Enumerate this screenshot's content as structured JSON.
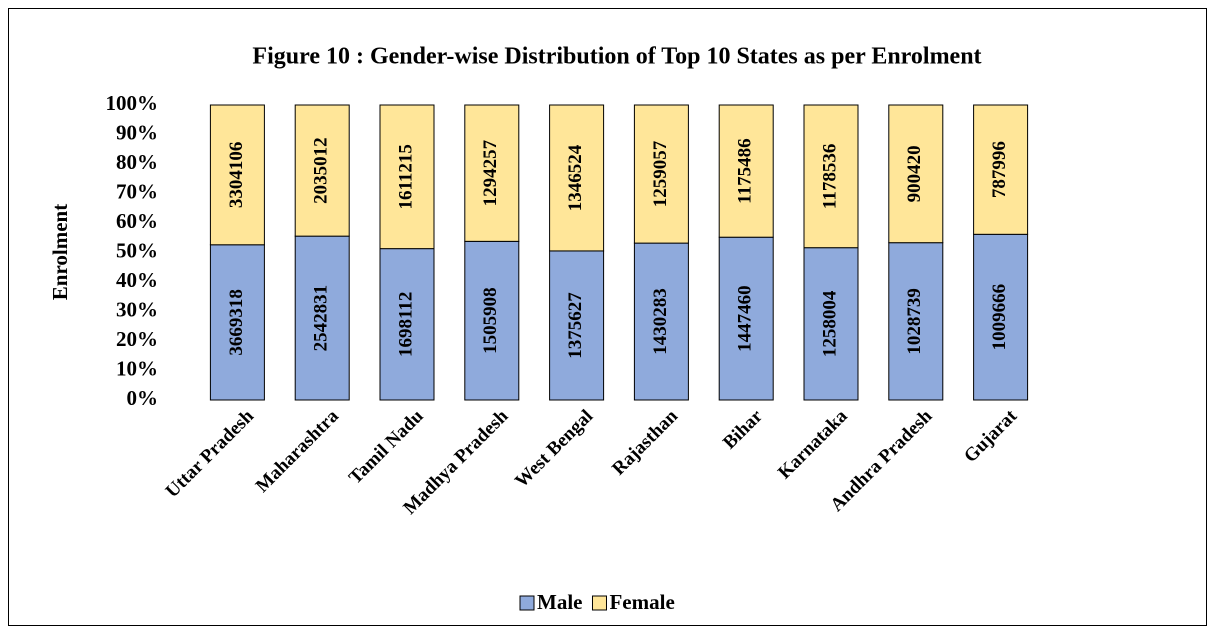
{
  "chart_data": {
    "type": "bar",
    "stack": "percent",
    "title": "Figure 10 : Gender-wise Distribution of Top 10 States as per Enrolment",
    "ylabel": "Enrolment",
    "categories": [
      "Uttar Pradesh",
      "Maharashtra",
      "Tamil Nadu",
      "Madhya Pradesh",
      "West Bengal",
      "Rajasthan",
      "Bihar",
      "Karnataka",
      "Andhra Pradesh",
      "Gujarat"
    ],
    "series": [
      {
        "name": "Male",
        "color": "#8faadc",
        "values": [
          3669318,
          2542831,
          1698112,
          1505908,
          1375627,
          1430283,
          1447460,
          1258004,
          1028739,
          1009666
        ]
      },
      {
        "name": "Female",
        "color": "#ffe699",
        "values": [
          3304106,
          2035012,
          1611215,
          1294257,
          1346524,
          1259057,
          1175486,
          1178536,
          900420,
          787996
        ]
      }
    ],
    "ylim": [
      0,
      100
    ],
    "yticks": [
      {
        "value": 0,
        "label": "0%"
      },
      {
        "value": 10,
        "label": "10%"
      },
      {
        "value": 20,
        "label": "20%"
      },
      {
        "value": 30,
        "label": "30%"
      },
      {
        "value": 40,
        "label": "40%"
      },
      {
        "value": 50,
        "label": "50%"
      },
      {
        "value": 60,
        "label": "60%"
      },
      {
        "value": 70,
        "label": "70%"
      },
      {
        "value": 80,
        "label": "80%"
      },
      {
        "value": 90,
        "label": "90%"
      },
      {
        "value": 100,
        "label": "100%"
      }
    ],
    "legend": "bottom"
  }
}
